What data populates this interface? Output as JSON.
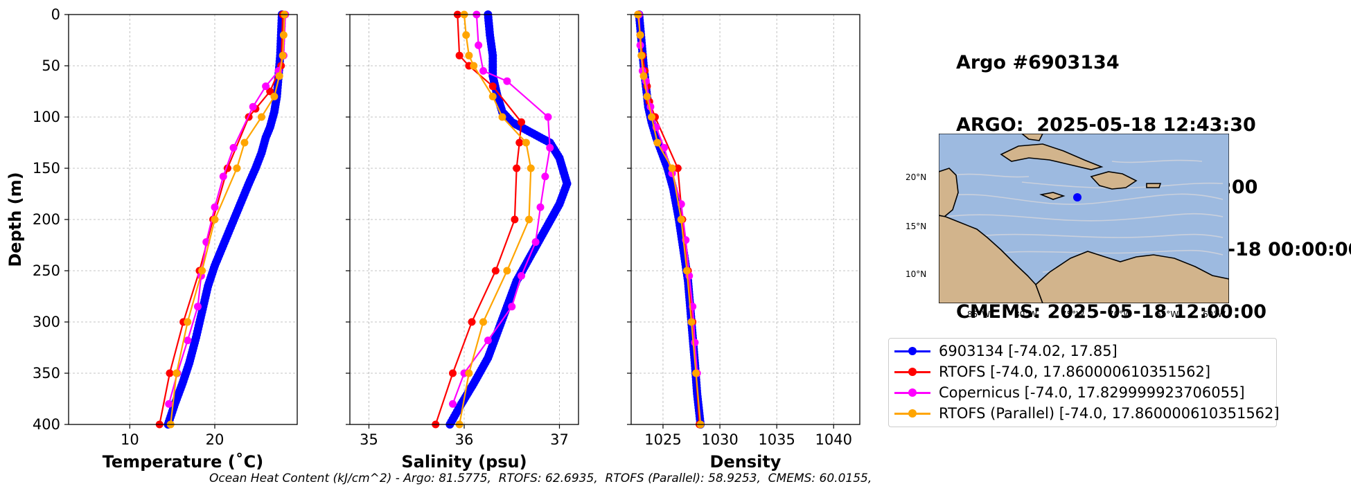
{
  "header": {
    "line1": "Argo #6903134",
    "line2": "ARGO:  2025-05-18 12:43:30",
    "line3": "RTOFS: 2025-05-18 12:00:00",
    "line4": "RTOFS (Parallel): 2025-05-18 00:00:00",
    "line5": "CMEMS: 2025-05-18 12:00:00"
  },
  "footer": "Ocean Heat Content (kJ/cm^2) - Argo: 81.5775,  RTOFS: 62.6935,  RTOFS (Parallel): 58.9253,  CMEMS: 60.0155,",
  "legend": [
    {
      "label": "6903134 [-74.02, 17.85]",
      "color": "#0000ff"
    },
    {
      "label": "RTOFS [-74.0, 17.860000610351562]",
      "color": "#ff0000"
    },
    {
      "label": "Copernicus [-74.0, 17.829999923706055]",
      "color": "#ff00ff"
    },
    {
      "label": "RTOFS (Parallel) [-74.0, 17.860000610351562]",
      "color": "#ffa500"
    }
  ],
  "map": {
    "lat_labels": [
      "20°N",
      "15°N",
      "10°N"
    ],
    "lon_labels": [
      "85°W",
      "80°W",
      "75°W",
      "70°W",
      "65°W",
      "60°W"
    ],
    "ocean_color": "#9dbae0",
    "land_color": "#d2b48c",
    "float_position": [
      -74.02,
      17.85
    ]
  },
  "chart_data": [
    {
      "type": "line",
      "xlabel": "Temperature (˚C)",
      "ylabel": "Depth (m)",
      "xlim": [
        2.8,
        29.7
      ],
      "ylim": [
        400,
        0
      ],
      "xticks": [
        10,
        20
      ],
      "yticks": [
        0,
        50,
        100,
        150,
        200,
        250,
        300,
        350,
        400
      ],
      "grid": true,
      "series": [
        {
          "name": "6903134",
          "color": "#0000ff",
          "marker": "dense",
          "x": [
            27.9,
            27.8,
            27.7,
            27.5,
            27.3,
            27.0,
            26.5,
            26.0,
            25.5,
            24.8,
            24.0,
            23.0,
            22.0,
            21.0,
            20.0,
            19.2,
            18.5,
            17.8,
            17.0,
            16.2,
            15.3,
            14.5
          ],
          "y": [
            0,
            20,
            40,
            60,
            80,
            95,
            110,
            120,
            135,
            150,
            165,
            185,
            205,
            225,
            245,
            265,
            290,
            315,
            340,
            360,
            380,
            400
          ]
        },
        {
          "name": "RTOFS",
          "color": "#ff0000",
          "x": [
            28.0,
            27.8,
            26.5,
            24.8,
            24.0,
            21.5,
            19.8,
            18.2,
            16.3,
            14.7,
            13.5
          ],
          "y": [
            0,
            50,
            75,
            92,
            100,
            150,
            200,
            250,
            300,
            350,
            400
          ]
        },
        {
          "name": "Copernicus",
          "color": "#ff00ff",
          "x": [
            28.3,
            28.1,
            27.5,
            26.0,
            24.5,
            22.2,
            21.0,
            20.0,
            19.0,
            18.4,
            18.0,
            16.8,
            15.6,
            14.6
          ],
          "y": [
            0,
            40,
            55,
            70,
            90,
            130,
            158,
            188,
            222,
            255,
            285,
            318,
            350,
            380
          ]
        },
        {
          "name": "RTOFS (Parallel)",
          "color": "#ffa500",
          "x": [
            28.2,
            28.1,
            28.0,
            27.6,
            27.0,
            25.5,
            23.5,
            22.6,
            20.0,
            18.5,
            16.8,
            15.5,
            14.8
          ],
          "y": [
            0,
            20,
            40,
            60,
            80,
            100,
            125,
            150,
            200,
            250,
            300,
            350,
            400
          ]
        }
      ]
    },
    {
      "type": "line",
      "xlabel": "Salinity (psu)",
      "xlim": [
        34.8,
        37.2
      ],
      "ylim": [
        400,
        0
      ],
      "xticks": [
        35,
        36,
        37
      ],
      "yticks": [
        0,
        50,
        100,
        150,
        200,
        250,
        300,
        350,
        400
      ],
      "grid": true,
      "series": [
        {
          "name": "6903134",
          "color": "#0000ff",
          "marker": "dense",
          "x": [
            36.25,
            36.27,
            36.3,
            36.3,
            36.35,
            36.4,
            36.5,
            36.7,
            36.9,
            37.0,
            37.08,
            37.0,
            36.85,
            36.7,
            36.55,
            36.45,
            36.35,
            36.25,
            36.1,
            35.97,
            35.85
          ],
          "y": [
            0,
            20,
            40,
            60,
            80,
            95,
            105,
            115,
            125,
            140,
            165,
            185,
            210,
            235,
            260,
            285,
            310,
            335,
            360,
            380,
            400
          ]
        },
        {
          "name": "RTOFS",
          "color": "#ff0000",
          "x": [
            35.93,
            35.95,
            36.05,
            36.3,
            36.6,
            36.58,
            36.55,
            36.53,
            36.33,
            36.08,
            35.88,
            35.7
          ],
          "y": [
            0,
            40,
            50,
            70,
            105,
            125,
            150,
            200,
            250,
            300,
            350,
            400
          ]
        },
        {
          "name": "Copernicus",
          "color": "#ff00ff",
          "x": [
            36.13,
            36.15,
            36.2,
            36.45,
            36.88,
            36.9,
            36.85,
            36.8,
            36.75,
            36.6,
            36.5,
            36.25,
            36.0,
            35.88
          ],
          "y": [
            0,
            30,
            55,
            65,
            100,
            130,
            158,
            188,
            222,
            255,
            285,
            318,
            350,
            380
          ]
        },
        {
          "name": "RTOFS (Parallel)",
          "color": "#ffa500",
          "x": [
            36.0,
            36.02,
            36.05,
            36.1,
            36.3,
            36.4,
            36.65,
            36.7,
            36.68,
            36.45,
            36.2,
            36.05,
            35.95
          ],
          "y": [
            0,
            20,
            40,
            50,
            80,
            100,
            125,
            150,
            200,
            250,
            300,
            350,
            400
          ]
        }
      ]
    },
    {
      "type": "line",
      "xlabel": "Density",
      "xlim": [
        1022.2,
        1042.3
      ],
      "ylim": [
        400,
        0
      ],
      "xticks": [
        1025,
        1030,
        1035,
        1040
      ],
      "yticks": [
        0,
        50,
        100,
        150,
        200,
        250,
        300,
        350,
        400
      ],
      "grid": true,
      "series": [
        {
          "name": "6903134",
          "color": "#0000ff",
          "marker": "dense",
          "x": [
            1022.9,
            1023.1,
            1023.3,
            1023.5,
            1023.7,
            1024.0,
            1024.4,
            1024.9,
            1025.4,
            1025.9,
            1026.4,
            1026.8,
            1027.2,
            1027.5,
            1027.8,
            1028.0,
            1028.3
          ],
          "y": [
            0,
            25,
            50,
            70,
            90,
            105,
            120,
            135,
            150,
            170,
            200,
            230,
            260,
            300,
            340,
            370,
            400
          ]
        },
        {
          "name": "RTOFS",
          "color": "#ff0000",
          "x": [
            1022.8,
            1023.0,
            1023.2,
            1023.4,
            1023.6,
            1023.8,
            1024.3,
            1026.3,
            1026.7,
            1027.2,
            1027.6,
            1027.9,
            1028.2
          ],
          "y": [
            0,
            20,
            40,
            55,
            70,
            85,
            100,
            150,
            200,
            250,
            300,
            350,
            400
          ]
        },
        {
          "name": "Copernicus",
          "color": "#ff00ff",
          "x": [
            1022.9,
            1023.0,
            1023.2,
            1023.5,
            1023.9,
            1024.4,
            1025.1,
            1025.8,
            1026.6,
            1027.0,
            1027.3,
            1027.6,
            1027.8,
            1028.0
          ],
          "y": [
            0,
            30,
            55,
            65,
            90,
            110,
            130,
            155,
            185,
            220,
            255,
            285,
            320,
            350
          ]
        },
        {
          "name": "RTOFS (Parallel)",
          "color": "#ffa500",
          "x": [
            1022.8,
            1023.0,
            1023.1,
            1023.3,
            1023.6,
            1024.0,
            1024.5,
            1025.8,
            1026.6,
            1027.1,
            1027.5,
            1027.9,
            1028.3
          ],
          "y": [
            0,
            20,
            40,
            60,
            80,
            100,
            125,
            150,
            200,
            250,
            300,
            350,
            400
          ]
        }
      ]
    }
  ]
}
